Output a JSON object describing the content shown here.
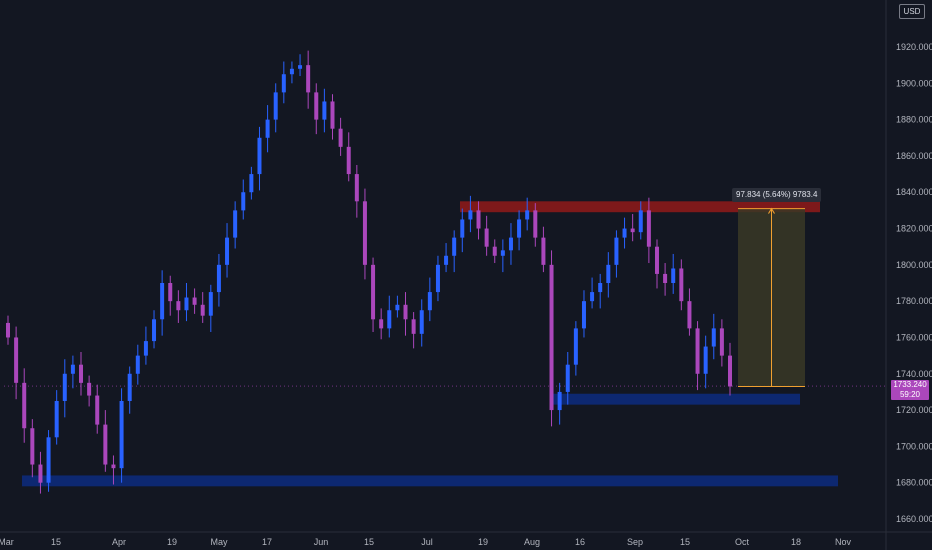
{
  "chart": {
    "currency": "USD",
    "current_price": "1733.240",
    "countdown": "59:20",
    "measure_label": "97.834 (5.64%) 9783.4",
    "colors": {
      "background": "#131722",
      "up": "#2962ff",
      "down": "#ab47bc",
      "resistance_zone": "#8b1a1a",
      "support_zone": "#0d2a7a",
      "measure_fill": "#3a3826",
      "measure_line": "#f0a030"
    }
  },
  "chart_data": {
    "type": "candlestick",
    "title": "",
    "ylim": [
      1650,
      1950
    ],
    "y_ticks": [
      "1660.000",
      "1680.000",
      "1700.000",
      "1720.000",
      "1740.000",
      "1760.000",
      "1780.000",
      "1800.000",
      "1820.000",
      "1840.000",
      "1860.000",
      "1880.000",
      "1900.000",
      "1920.000"
    ],
    "x_ticks": [
      "Mar",
      "15",
      "Apr",
      "19",
      "May",
      "17",
      "Jun",
      "15",
      "Jul",
      "19",
      "Aug",
      "16",
      "Sep",
      "15",
      "Oct",
      "18",
      "Nov"
    ],
    "close_series": [
      1760,
      1735,
      1710,
      1690,
      1680,
      1705,
      1725,
      1740,
      1745,
      1735,
      1728,
      1712,
      1690,
      1688,
      1725,
      1740,
      1750,
      1758,
      1770,
      1790,
      1780,
      1775,
      1782,
      1778,
      1772,
      1785,
      1800,
      1815,
      1830,
      1840,
      1850,
      1870,
      1880,
      1895,
      1905,
      1908,
      1910,
      1895,
      1880,
      1890,
      1875,
      1865,
      1850,
      1835,
      1800,
      1770,
      1765,
      1775,
      1778,
      1770,
      1762,
      1775,
      1785,
      1800,
      1805,
      1815,
      1825,
      1830,
      1820,
      1810,
      1805,
      1808,
      1815,
      1825,
      1830,
      1815,
      1800,
      1720,
      1730,
      1745,
      1765,
      1780,
      1785,
      1790,
      1800,
      1815,
      1820,
      1818,
      1830,
      1810,
      1795,
      1790,
      1798,
      1780,
      1765,
      1740,
      1755,
      1765,
      1750,
      1733
    ],
    "zones": [
      {
        "name": "resistance",
        "low": 1829,
        "high": 1835
      },
      {
        "name": "support",
        "low": 1723,
        "high": 1729
      },
      {
        "name": "support",
        "low": 1678,
        "high": 1684
      }
    ],
    "measure": {
      "from": 1733,
      "to": 1831
    }
  }
}
